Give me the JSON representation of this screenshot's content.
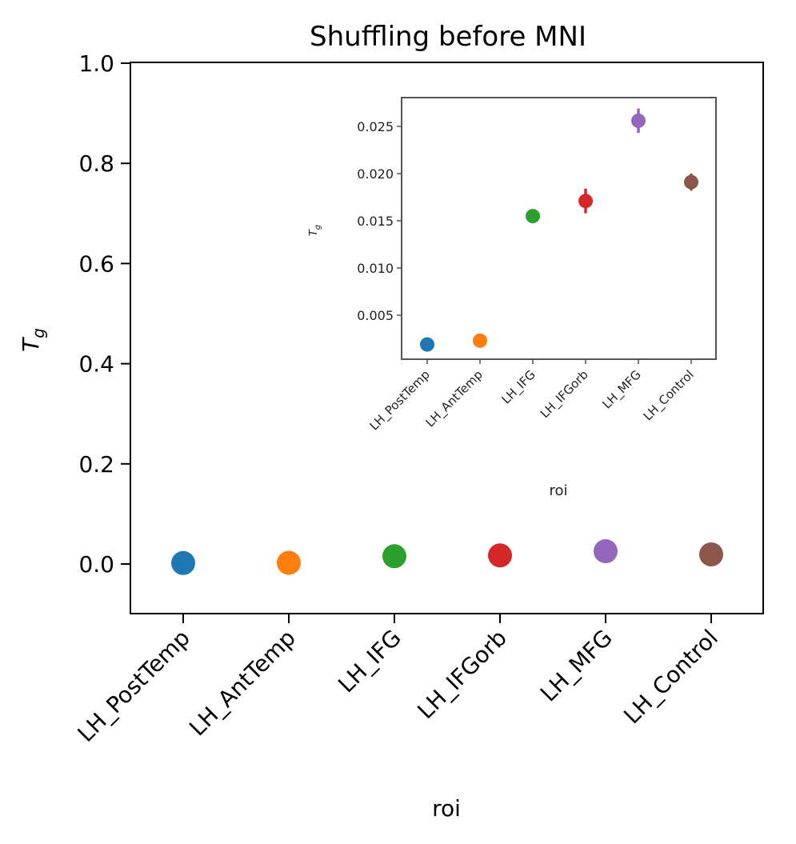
{
  "chart_data": [
    {
      "type": "scatter",
      "title": "Shuffling before MNI",
      "xlabel": "roi",
      "ylabel": "T_g",
      "ylabel_main": "T",
      "ylabel_sub": "g",
      "ylim": [
        -0.1,
        1.0
      ],
      "yticks": [
        "0.0",
        "0.2",
        "0.4",
        "0.6",
        "0.8",
        "1.0"
      ],
      "categories": [
        "LH_PostTemp",
        "LH_AntTemp",
        "LH_IFG",
        "LH_IFGorb",
        "LH_MFG",
        "LH_Control"
      ],
      "values": [
        0.0019,
        0.0023,
        0.0155,
        0.0171,
        0.0256,
        0.0191
      ],
      "colors": [
        "#1f77b4",
        "#ff7f0e",
        "#2ca02c",
        "#d62728",
        "#9467bd",
        "#8c564b"
      ]
    },
    {
      "type": "scatter",
      "title": "",
      "xlabel": "roi",
      "ylabel": "T_g",
      "ylabel_main": "T",
      "ylabel_sub": "g",
      "ylim": [
        0.0,
        0.0282
      ],
      "yticks": [
        "0.005",
        "0.010",
        "0.015",
        "0.020",
        "0.025"
      ],
      "categories": [
        "LH_PostTemp",
        "LH_AntTemp",
        "LH_IFG",
        "LH_IFGorb",
        "LH_MFG",
        "LH_Control"
      ],
      "values": [
        0.0019,
        0.0023,
        0.0155,
        0.0171,
        0.0256,
        0.0191
      ],
      "errors": [
        0.0002,
        0.0002,
        0.0004,
        0.0013,
        0.0013,
        0.0009
      ],
      "colors": [
        "#1f77b4",
        "#ff7f0e",
        "#2ca02c",
        "#d62728",
        "#9467bd",
        "#8c564b"
      ]
    }
  ]
}
